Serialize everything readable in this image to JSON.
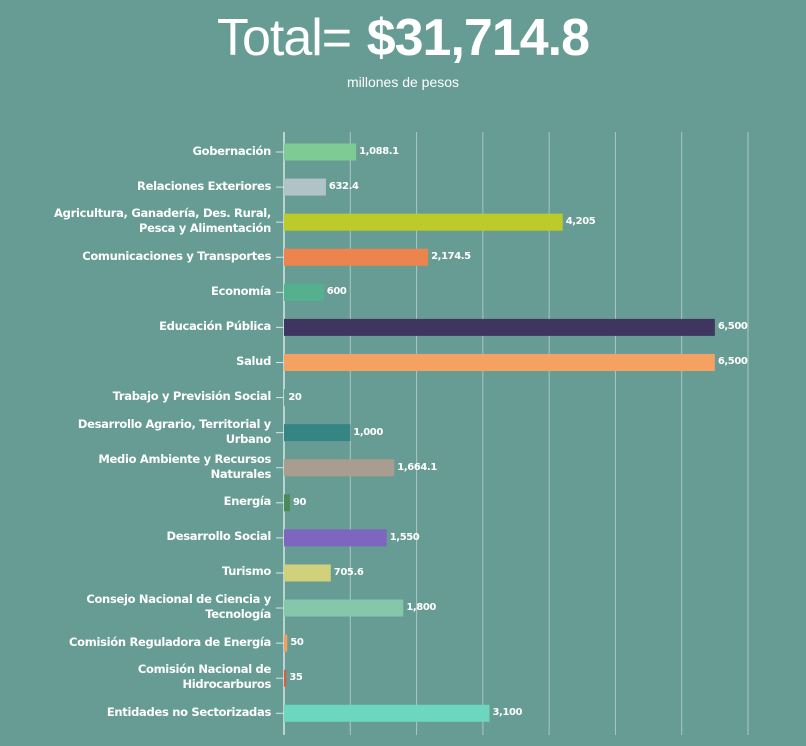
{
  "header": {
    "total_label": "Total=",
    "total_value": "$31,714.8",
    "units": "millones de pesos"
  },
  "colors": {
    "background": "#679c94",
    "grid": "#a9c8c3"
  },
  "chart_data": {
    "type": "bar",
    "orientation": "horizontal",
    "title": "Total= $31,714.8",
    "subtitle": "millones de pesos",
    "xlabel": "",
    "ylabel": "",
    "xlim": [
      0,
      7000
    ],
    "grid": true,
    "gridlines": [
      1000,
      2000,
      3000,
      4000,
      5000,
      6000,
      7000
    ],
    "categories": [
      "Gobernación",
      "Relaciones Exteriores",
      "Agricultura, Ganadería, Des. Rural,\nPesca y Alimentación",
      "Comunicaciones y Transportes",
      "Economía",
      "Educación Pública",
      "Salud",
      "Trabajo y Previsión Social",
      "Desarrollo Agrario, Territorial y\nUrbano",
      "Medio Ambiente y Recursos\nNaturales",
      "Energía",
      "Desarrollo Social",
      "Turismo",
      "Consejo Nacional de Ciencia y\nTecnología",
      "Comisión Reguladora de Energía",
      "Comisión Nacional de\nHidrocarburos",
      "Entidades no Sectorizadas"
    ],
    "values": [
      1088.1,
      632.4,
      4205,
      2174.5,
      600,
      6500,
      6500,
      20,
      1000,
      1664.1,
      90,
      1550,
      705.6,
      1800,
      50,
      35,
      3100
    ],
    "data_labels": [
      "1,088.1",
      "632.4",
      "4,205",
      "2,174.5",
      "600",
      "6,500",
      "6,500",
      "20",
      "1,000",
      "1,664.1",
      "90",
      "1,550",
      "705.6",
      "1,800",
      "50",
      "35",
      "3,100"
    ],
    "bar_colors": [
      "#7fcb95",
      "#b0c3c6",
      "#bccb2a",
      "#ee844d",
      "#55b08d",
      "#3e3560",
      "#f4a162",
      "#679c94",
      "#368585",
      "#a99d8f",
      "#4b8a58",
      "#7d66c0",
      "#d1d17b",
      "#86c7ab",
      "#f2a060",
      "#d0604b",
      "#6dd6bf"
    ]
  }
}
